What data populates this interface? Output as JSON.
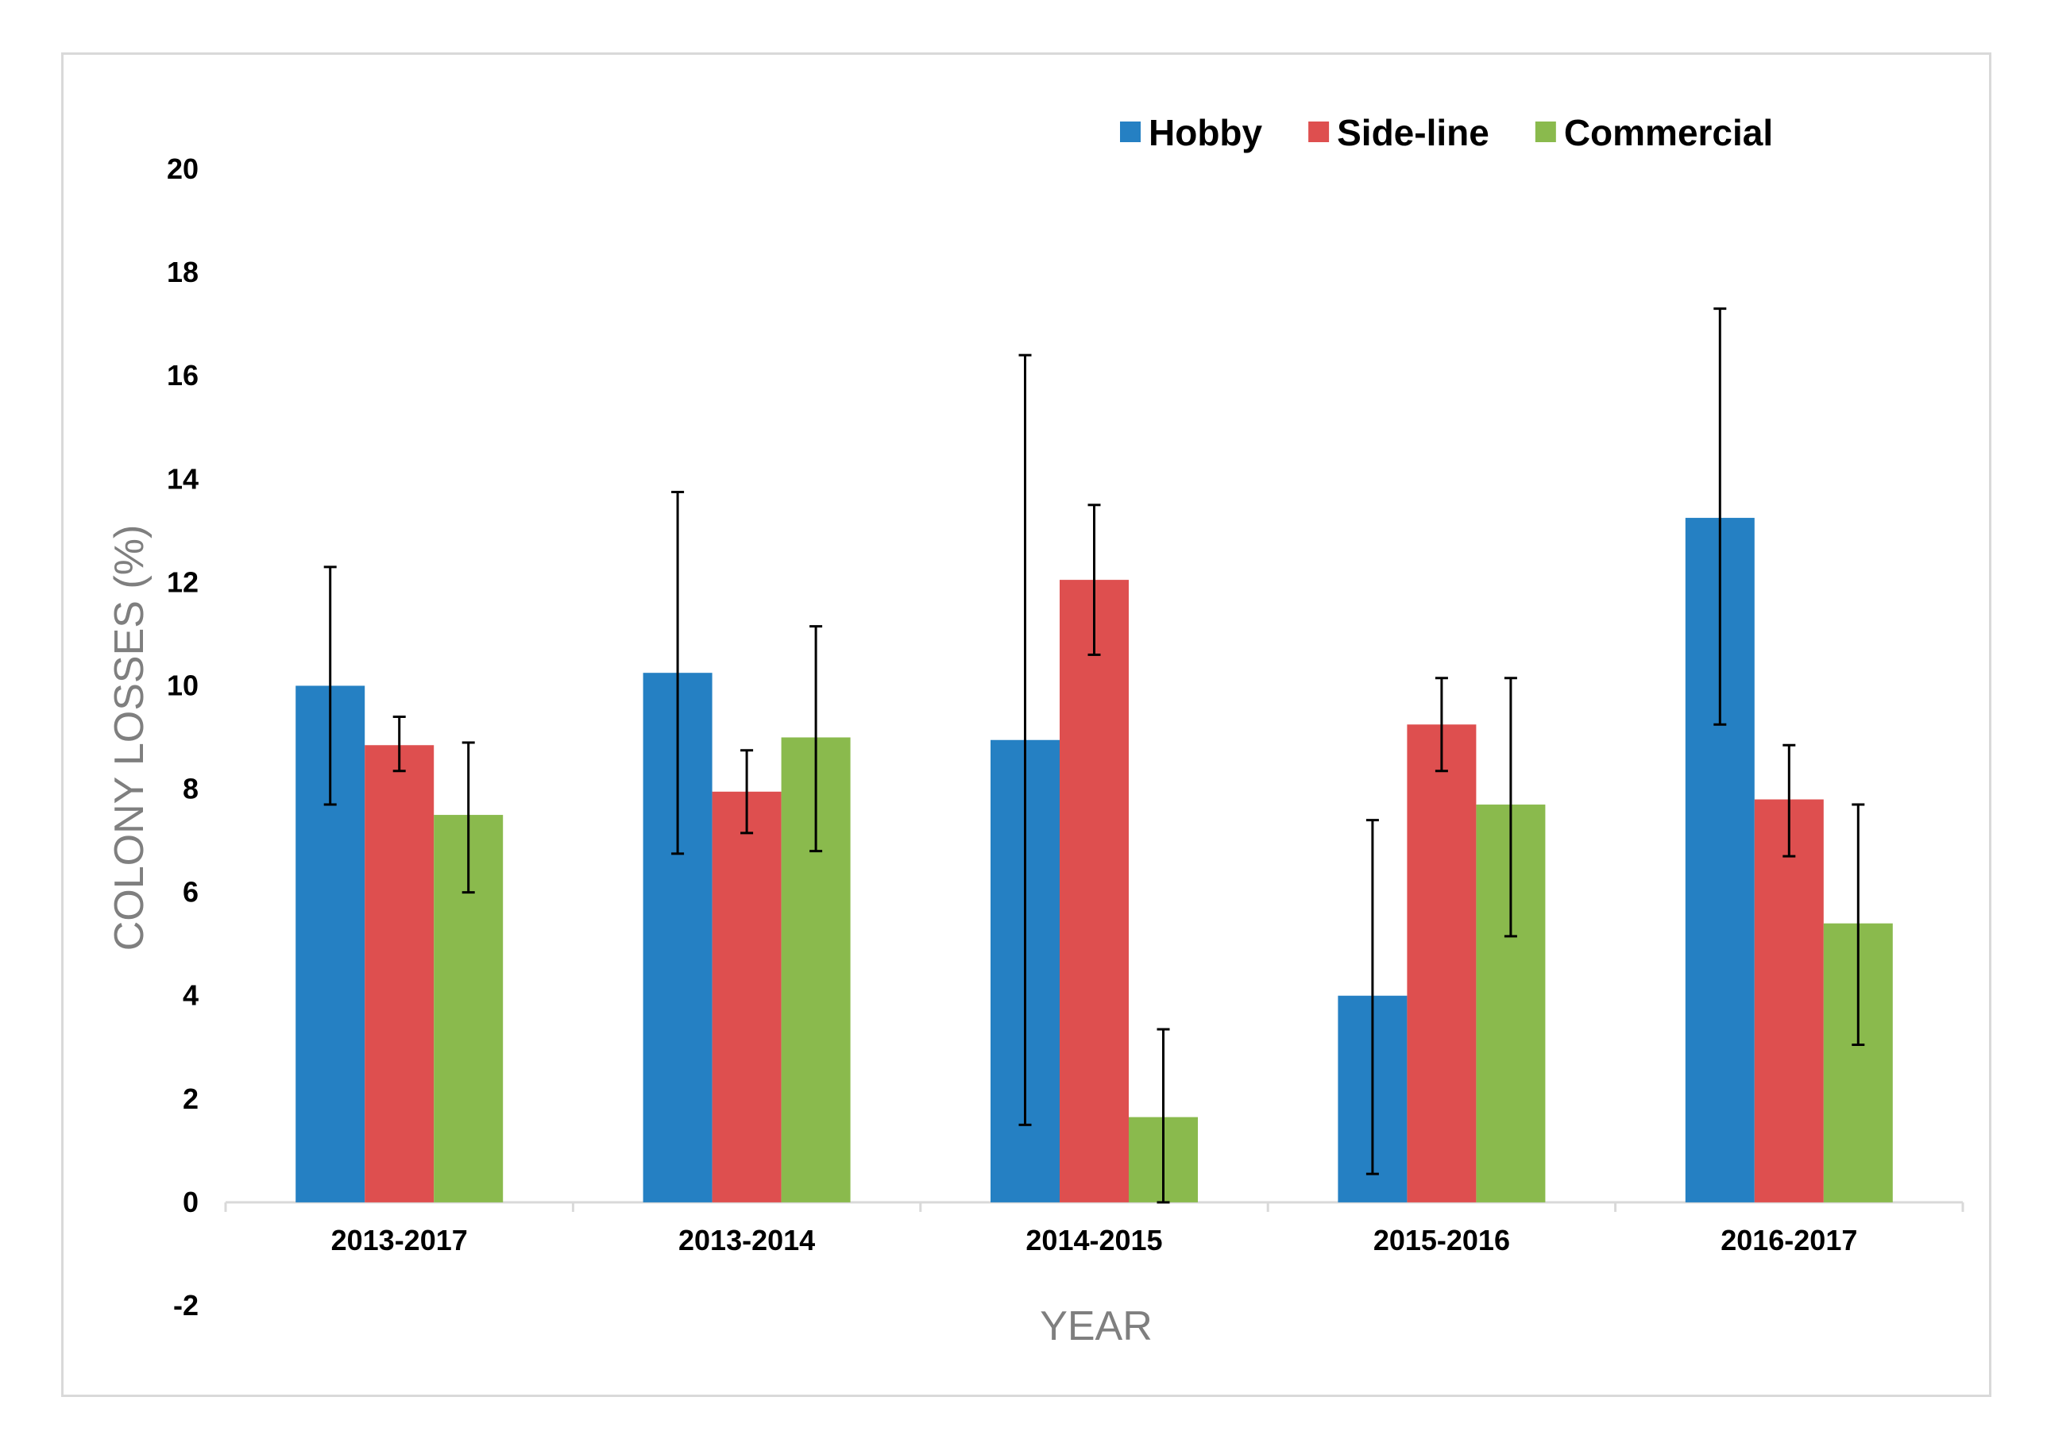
{
  "chart_data": {
    "type": "bar",
    "title": "",
    "xlabel": "YEAR",
    "ylabel": "COLONY LOSSES (%)",
    "ylim": [
      -2,
      20
    ],
    "yticks": [
      -2,
      0,
      2,
      4,
      6,
      8,
      10,
      12,
      14,
      16,
      18,
      20
    ],
    "grid": false,
    "legend_position": "top-right",
    "categories": [
      "2013-2017",
      "2013-2014",
      "2014-2015",
      "2015-2016",
      "2016-2017"
    ],
    "series": [
      {
        "name": "Hobby",
        "color": "#2580c3",
        "values": [
          10.0,
          10.25,
          8.95,
          4.0,
          13.25
        ],
        "error_low": [
          7.7,
          6.75,
          1.5,
          0.55,
          9.25
        ],
        "error_high": [
          12.3,
          13.75,
          16.4,
          7.4,
          17.3
        ]
      },
      {
        "name": "Side-line",
        "color": "#de4f4f",
        "values": [
          8.85,
          7.95,
          12.05,
          9.25,
          7.8
        ],
        "error_low": [
          8.35,
          7.15,
          10.6,
          8.35,
          6.7
        ],
        "error_high": [
          9.4,
          8.75,
          13.5,
          10.15,
          8.85
        ]
      },
      {
        "name": "Commercial",
        "color": "#8aba4d",
        "values": [
          7.5,
          9.0,
          1.65,
          7.7,
          5.4
        ],
        "error_low": [
          6.0,
          6.8,
          0.0,
          5.15,
          3.05
        ],
        "error_high": [
          8.9,
          11.15,
          3.35,
          10.15,
          7.7
        ]
      }
    ]
  }
}
